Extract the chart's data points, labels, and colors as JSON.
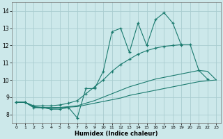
{
  "xlabel": "Humidex (Indice chaleur)",
  "bg_color": "#cce8ea",
  "grid_color": "#aacdd0",
  "line_color": "#1a7a6e",
  "xlim": [
    -0.5,
    23.5
  ],
  "ylim": [
    7.5,
    14.5
  ],
  "xticks": [
    0,
    1,
    2,
    3,
    4,
    5,
    6,
    7,
    8,
    9,
    10,
    11,
    12,
    13,
    14,
    15,
    16,
    17,
    18,
    19,
    20,
    21,
    22,
    23
  ],
  "yticks": [
    8,
    9,
    10,
    11,
    12,
    13,
    14
  ],
  "series": {
    "zigzag": {
      "x": [
        0,
        1,
        2,
        3,
        4,
        5,
        6,
        7,
        8,
        9,
        10,
        11,
        12,
        13,
        14,
        15,
        16,
        17,
        18,
        19
      ],
      "y": [
        8.7,
        8.7,
        8.4,
        8.4,
        8.3,
        8.3,
        8.4,
        7.8,
        9.5,
        9.5,
        10.5,
        12.8,
        13.0,
        11.6,
        13.3,
        12.0,
        13.5,
        13.9,
        13.3,
        12.0
      ]
    },
    "smooth_upper": {
      "x": [
        0,
        1,
        2,
        3,
        4,
        5,
        6,
        7,
        8,
        9,
        10,
        11,
        12,
        13,
        14,
        15,
        16,
        17,
        18,
        19,
        20,
        21,
        22
      ],
      "y": [
        8.7,
        8.7,
        8.5,
        8.5,
        8.5,
        8.55,
        8.65,
        8.8,
        9.2,
        9.6,
        10.0,
        10.5,
        10.9,
        11.2,
        11.5,
        11.7,
        11.85,
        11.95,
        12.0,
        12.05,
        12.05,
        10.55,
        10.05
      ]
    },
    "smooth_mid": {
      "x": [
        0,
        1,
        2,
        3,
        4,
        5,
        6,
        7,
        8,
        9,
        10,
        11,
        12,
        13,
        14,
        15,
        16,
        17,
        18,
        19,
        20,
        21,
        22,
        23
      ],
      "y": [
        8.7,
        8.7,
        8.45,
        8.4,
        8.4,
        8.4,
        8.45,
        8.5,
        8.65,
        8.8,
        9.0,
        9.2,
        9.4,
        9.6,
        9.75,
        9.9,
        10.05,
        10.15,
        10.25,
        10.35,
        10.45,
        10.55,
        10.5,
        10.0
      ]
    },
    "smooth_lower": {
      "x": [
        0,
        1,
        2,
        3,
        4,
        5,
        6,
        7,
        8,
        9,
        10,
        11,
        12,
        13,
        14,
        15,
        16,
        17,
        18,
        19,
        20,
        21,
        22,
        23
      ],
      "y": [
        8.7,
        8.7,
        8.4,
        8.38,
        8.35,
        8.38,
        8.42,
        8.45,
        8.55,
        8.65,
        8.75,
        8.85,
        8.95,
        9.1,
        9.2,
        9.3,
        9.4,
        9.5,
        9.6,
        9.7,
        9.8,
        9.9,
        9.95,
        10.0
      ]
    }
  }
}
